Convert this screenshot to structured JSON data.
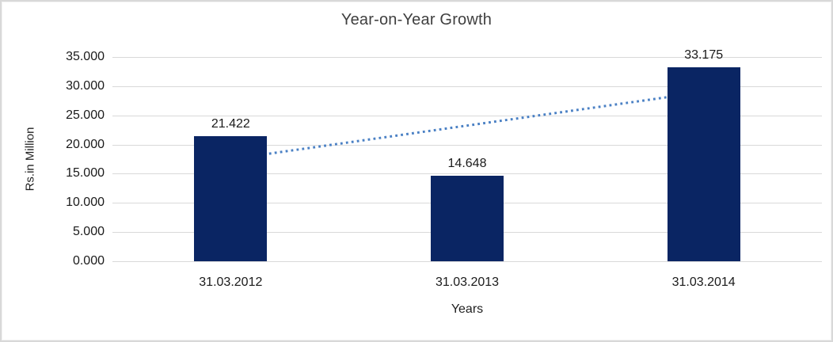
{
  "chart_data": {
    "type": "bar",
    "title": "Year-on-Year Growth",
    "xlabel": "Years",
    "ylabel": "Rs.in Million",
    "categories": [
      "31.03.2012",
      "31.03.2013",
      "31.03.2014"
    ],
    "values": [
      21.422,
      14.648,
      33.175
    ],
    "value_labels": [
      "21.422",
      "14.648",
      "33.175"
    ],
    "ylim": [
      0,
      35
    ],
    "ytick_step": 5,
    "ytick_labels": [
      "0.000",
      "5.000",
      "10.000",
      "15.000",
      "20.000",
      "25.000",
      "30.000",
      "35.000"
    ],
    "grid": true,
    "legend": "none",
    "colors": {
      "bar": "#0a2563",
      "trendline": "#4a80c4",
      "gridline": "#d9d9d9",
      "frame_border": "#d8d8d8",
      "title_text": "#3f3f3f",
      "axis_text": "#1a1a1a"
    },
    "trendline": {
      "type": "linear",
      "style": "dotted",
      "start_value": 17.5,
      "end_value": 29.0
    }
  }
}
